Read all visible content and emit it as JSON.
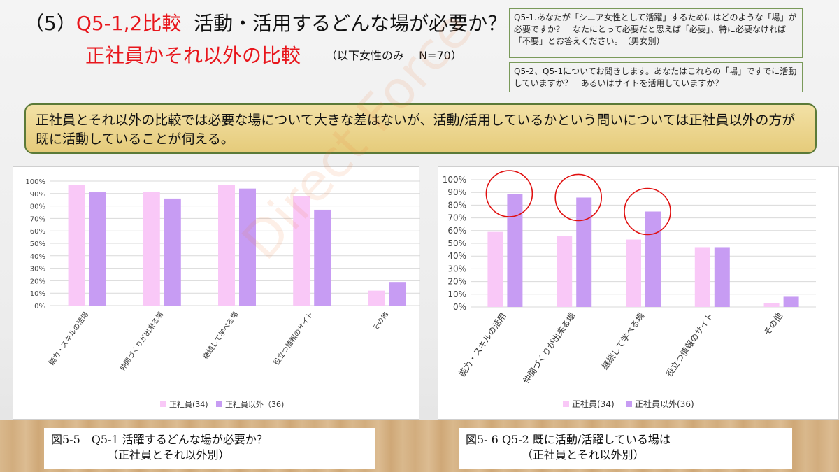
{
  "header": {
    "prefix": "（5）",
    "code": "Q5-1,2比較",
    "subject": "活動・活用するどんな場が必要か？",
    "subtitle": "正社員かそれ以外の比較",
    "note": "（以下女性のみ　 N=70）"
  },
  "questions": {
    "q1": "Q5-1.あなたが「シニア女性として活躍」するためにはどのような「場」が必要ですか？　なたにとって必要だと思えば「必要」、特に必要なければ「不要」とお答えください。　（男女別）",
    "q2": "Q5-2、Q5-1についてお聞きします。あなたはこれらの「場」ですでに活動していますか？　あるいはサイトを活用していますか？"
  },
  "summary": "正社員とそれ以外の比較では必要な場について大きな差はないが、活動/活用しているかという問いについては正社員以外の方が既に活動していることが伺える。",
  "watermark": "Direct Force",
  "colors": {
    "series1": "#f9c8f7",
    "series2": "#c79cf3",
    "highlight": "#e01010",
    "grid": "#d9d9d9"
  },
  "captions": {
    "left_line1": "図5-5　Q5-1 活躍するどんな場が必要か？",
    "left_line2": "（正社員とそれ以外別）",
    "right_line1": "図5- 6  Q5-2 既に活動/活躍している場は",
    "right_line2": "（正社員とそれ以外別）"
  },
  "chart_data": [
    {
      "type": "bar",
      "categories": [
        "能力・スキルの活用",
        "仲間づくりが出来る場",
        "継続して学べる場",
        "役立つ情報のサイト",
        "その他"
      ],
      "series": [
        {
          "name": "正社員(34)",
          "values": [
            97,
            91,
            97,
            88,
            12
          ]
        },
        {
          "name": "正社員以外（36)",
          "values": [
            91,
            86,
            94,
            77,
            19
          ]
        }
      ],
      "y_ticks": [
        "0%",
        "10%",
        "20%",
        "30%",
        "40%",
        "50%",
        "60%",
        "70%",
        "80%",
        "90%",
        "100%"
      ],
      "ylim": [
        0,
        100
      ],
      "legend": "bottom",
      "grid": true
    },
    {
      "type": "bar",
      "categories": [
        "能力・スキルの活用",
        "仲間づくりが出来る場",
        "継続して学べる場",
        "役立つ情報のサイト",
        "その他"
      ],
      "series": [
        {
          "name": "正社員(34)",
          "values": [
            59,
            56,
            53,
            47,
            3
          ]
        },
        {
          "name": "正社員以外(36)",
          "values": [
            89,
            86,
            75,
            47,
            8
          ]
        }
      ],
      "highlighted_categories": [
        0,
        1,
        2
      ],
      "y_ticks": [
        "0%",
        "10%",
        "20%",
        "30%",
        "40%",
        "50%",
        "60%",
        "70%",
        "80%",
        "90%",
        "100%"
      ],
      "ylim": [
        0,
        100
      ],
      "legend": "bottom",
      "grid": true
    }
  ]
}
